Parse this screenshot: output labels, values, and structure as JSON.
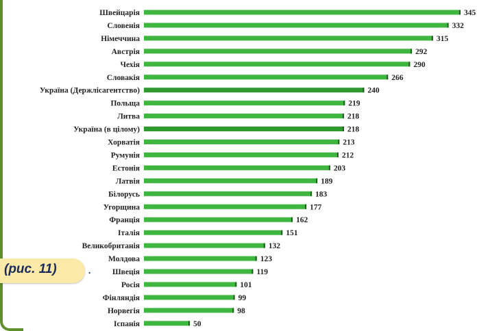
{
  "caption": {
    "text": "(рис. 11)",
    "trailing": "."
  },
  "colors": {
    "bar": "#3fb63f",
    "bar_highlight": "#2f9a30",
    "value_tick": "#1d5e1d",
    "frame": "#5f8f2a",
    "caption_bg": "#fbe9a8",
    "caption_text": "#1a2a5a"
  },
  "chart_data": {
    "type": "bar",
    "orientation": "horizontal",
    "title": "",
    "xlabel": "",
    "ylabel": "",
    "xlim": [
      0,
      345
    ],
    "grid": false,
    "legend": false,
    "categories": [
      "Швейцарія",
      "Словенія",
      "Німеччина",
      "Австрія",
      "Чехія",
      "Словакія",
      "Україна (Держлісагентство)",
      "Польща",
      "Литва",
      "Україна (в цілому)",
      "Хорватія",
      "Румунія",
      "Естонія",
      "Латвія",
      "Білорусь",
      "Угорщина",
      "Франція",
      "Італія",
      "Великобританія",
      "Молдова",
      "Швеція",
      "Росія",
      "Фінляндія",
      "Норвегія",
      "Іспанія"
    ],
    "values": [
      345,
      332,
      315,
      292,
      290,
      266,
      240,
      219,
      218,
      218,
      213,
      212,
      203,
      189,
      183,
      177,
      162,
      151,
      132,
      123,
      119,
      101,
      99,
      98,
      50
    ],
    "highlighted": [
      "Україна (Держлісагентство)",
      "Україна (в цілому)"
    ]
  }
}
